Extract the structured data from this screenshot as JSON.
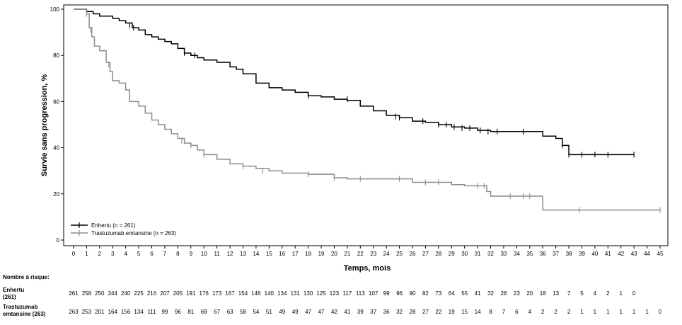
{
  "chart_data": {
    "type": "line",
    "title": "",
    "xlabel": "Temps, mois",
    "ylabel": "Survie sans progression, %",
    "xlim": [
      0,
      45
    ],
    "ylim": [
      0,
      100
    ],
    "x_ticks": [
      "0",
      "1",
      "2",
      "3",
      "4",
      "5",
      "6",
      "7",
      "8",
      "9",
      "10",
      "11",
      "12",
      "13",
      "14",
      "15",
      "16",
      "17",
      "18",
      "19",
      "20",
      "21",
      "22",
      "23",
      "24",
      "25",
      "26",
      "27",
      "28",
      "29",
      "30",
      "31",
      "32",
      "33",
      "34",
      "35",
      "36",
      "37",
      "38",
      "39",
      "40",
      "41",
      "42",
      "43",
      "44",
      "45"
    ],
    "y_ticks": [
      "0",
      "20",
      "40",
      "60",
      "80",
      "100"
    ],
    "grid": false,
    "legend_position": "bottom-left",
    "series": [
      {
        "name": "Enhertu (n = 261)",
        "color": "#000000",
        "x": [
          0,
          1,
          1.5,
          2,
          2.5,
          3,
          3.5,
          4,
          4.5,
          5,
          5.5,
          6,
          6.5,
          7,
          7.5,
          8,
          8.5,
          9,
          9.5,
          10,
          11,
          12,
          12.5,
          13,
          14,
          15,
          16,
          17,
          18,
          19,
          20,
          21,
          22,
          23,
          24,
          25,
          26,
          27,
          28,
          29,
          30,
          31,
          32,
          33,
          34,
          35,
          36,
          37,
          37.5,
          38,
          39,
          40,
          41,
          42,
          43
        ],
        "y": [
          100,
          99,
          98,
          97,
          97,
          96,
          95,
          94,
          92,
          91,
          89,
          88,
          87,
          86,
          85,
          83,
          81,
          80,
          79,
          78,
          77,
          75,
          74,
          72,
          68,
          66,
          65,
          64,
          62.5,
          62,
          61,
          60.5,
          58,
          56,
          54,
          53,
          51.5,
          51,
          50,
          49,
          48.5,
          47.5,
          47,
          47,
          47,
          47,
          45,
          44,
          41,
          37,
          37,
          37,
          37,
          37,
          37
        ],
        "censor_x": [
          1,
          4.3,
          4.6,
          8.5,
          9.3,
          13,
          18,
          21,
          22,
          24.7,
          25,
          26.8,
          28,
          28.6,
          29.2,
          29.8,
          30.4,
          31.2,
          31.8,
          32.5,
          34.5,
          37.5,
          38,
          39,
          40,
          41,
          43
        ],
        "censor_y": [
          99,
          93,
          92,
          81,
          80,
          73,
          62.5,
          61,
          59,
          53.5,
          53,
          51.5,
          50,
          50,
          49,
          48.5,
          48.5,
          47.5,
          47,
          47,
          47,
          41,
          37,
          37,
          37,
          37,
          37
        ]
      },
      {
        "name": "Trastuzumab emtansine (n = 263)",
        "color": "#8c8c8c",
        "x": [
          0,
          1,
          1.2,
          1.4,
          1.6,
          2,
          2.5,
          2.8,
          3,
          3.5,
          4,
          4.3,
          5,
          5.5,
          6,
          6.5,
          7,
          7.5,
          8,
          8.5,
          9,
          9.5,
          10,
          11,
          12,
          13,
          14,
          15,
          16,
          18,
          20,
          21,
          22,
          25,
          26,
          27,
          29,
          30,
          31,
          31.7,
          32,
          35,
          35.9,
          36,
          38.8,
          45
        ],
        "y": [
          100,
          98,
          92,
          88,
          84,
          82,
          77,
          73,
          69,
          68,
          65,
          60,
          58,
          55,
          52,
          50,
          48,
          46,
          44,
          42,
          41,
          39,
          37,
          35,
          33,
          32,
          31,
          30,
          29,
          28.5,
          27,
          26.5,
          26.5,
          26.5,
          25,
          25,
          24,
          23.5,
          23.5,
          21,
          19,
          19,
          19,
          13,
          13,
          13
        ],
        "censor_x": [
          1,
          1.3,
          2.7,
          3,
          4.3,
          5,
          5.5,
          7,
          8.3,
          9,
          10,
          13,
          14.5,
          18,
          20,
          22,
          25,
          27,
          28,
          31,
          31.5,
          32,
          33.5,
          34.5,
          35,
          38.8,
          45
        ],
        "censor_y": [
          98,
          91,
          76,
          70,
          64,
          59,
          56,
          49,
          43,
          41,
          37,
          32,
          30,
          28.5,
          27,
          26.5,
          26.5,
          25,
          25,
          23.5,
          23.5,
          20,
          19,
          19,
          19,
          13,
          13
        ]
      }
    ],
    "risk_table": {
      "header": "Nombre à risque:",
      "rows": [
        {
          "label_line1": "Enhertu",
          "label_line2": "(261)",
          "values": [
            "261",
            "258",
            "250",
            "244",
            "240",
            "225",
            "216",
            "207",
            "205",
            "191",
            "176",
            "173",
            "167",
            "154",
            "146",
            "140",
            "134",
            "131",
            "130",
            "125",
            "123",
            "117",
            "113",
            "107",
            "99",
            "96",
            "90",
            "82",
            "73",
            "64",
            "55",
            "41",
            "32",
            "28",
            "23",
            "20",
            "18",
            "13",
            "7",
            "5",
            "4",
            "2",
            "1",
            "0"
          ]
        },
        {
          "label_line1": "Trastuzumab",
          "label_line2": "emtansine (263)",
          "values": [
            "263",
            "253",
            "201",
            "164",
            "156",
            "134",
            "111",
            "99",
            "96",
            "81",
            "69",
            "67",
            "63",
            "58",
            "54",
            "51",
            "49",
            "49",
            "47",
            "47",
            "42",
            "41",
            "39",
            "37",
            "36",
            "32",
            "28",
            "27",
            "22",
            "19",
            "15",
            "14",
            "8",
            "7",
            "6",
            "4",
            "2",
            "2",
            "2",
            "1",
            "1",
            "1",
            "1",
            "1",
            "1",
            "0"
          ]
        }
      ]
    }
  }
}
